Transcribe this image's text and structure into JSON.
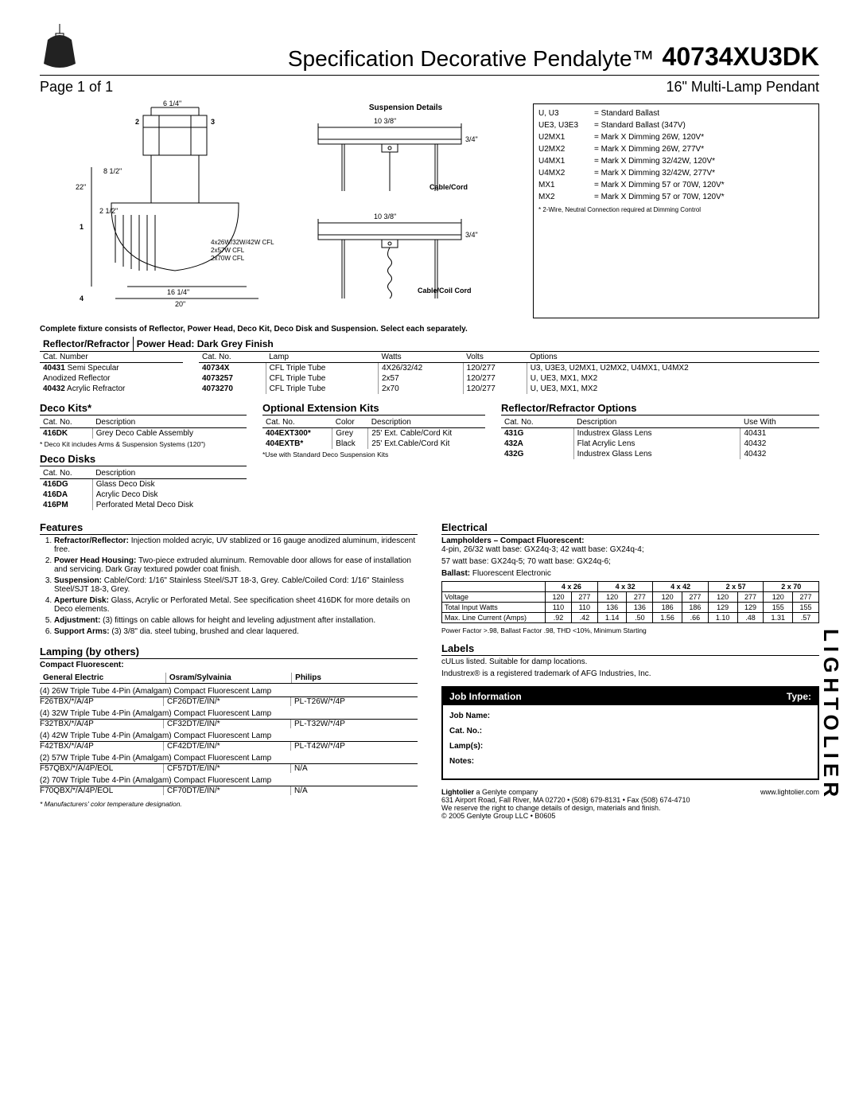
{
  "header": {
    "title": "Specification Decorative Pendalyte™",
    "model": "40734XU3DK",
    "page": "Page 1 of 1",
    "subtitle": "16\" Multi-Lamp Pendant"
  },
  "diagram": {
    "dims": {
      "d1": "6 1/4\"",
      "d2": "8 1/2\"",
      "d3": "22\"",
      "d4": "2 1/2\"",
      "d5": "16 1/4\"",
      "d6": "20\"",
      "cfl1": "4x26W/32W/42W CFL",
      "cfl2": "2x57W CFL",
      "cfl3": "2x70W CFL"
    },
    "markers": [
      "1",
      "2",
      "3",
      "4"
    ]
  },
  "suspension": {
    "title": "Suspension Details",
    "top_dim": "10 3/8\"",
    "side_dim": "3/4\"",
    "label1": "Cable/Cord",
    "label2": "Cable/Coil Cord"
  },
  "ballast": {
    "rows": [
      {
        "code": "U, U3",
        "desc": "= Standard Ballast"
      },
      {
        "code": "UE3, U3E3",
        "desc": "= Standard Ballast (347V)"
      },
      {
        "code": "U2MX1",
        "desc": "= Mark X Dimming 26W, 120V*"
      },
      {
        "code": "U2MX2",
        "desc": "= Mark X Dimming 26W, 277V*"
      },
      {
        "code": "U4MX1",
        "desc": "= Mark X Dimming 32/42W, 120V*"
      },
      {
        "code": "U4MX2",
        "desc": "= Mark X Dimming 32/42W, 277V*"
      },
      {
        "code": "MX1",
        "desc": "= Mark X Dimming 57 or 70W, 120V*"
      },
      {
        "code": "MX2",
        "desc": "= Mark X Dimming 57 or 70W, 120V*"
      }
    ],
    "note": "* 2-Wire, Neutral Connection required at Dimming Control"
  },
  "complete_note": "Complete fixture consists of Reflector, Power Head, Deco Kit, Deco Disk and Suspension. Select each separately.",
  "rr_title": "Reflector/Refractor",
  "ph_title": "Power Head: Dark Grey Finish",
  "refl_table": {
    "headers": [
      "Cat. Number"
    ],
    "rows": [
      {
        "cat": "40431",
        "desc": "Semi Specular Anodized Reflector"
      },
      {
        "cat": "40432",
        "desc": "Acrylic Refractor"
      }
    ],
    "raw_rows": [
      [
        "40431 Semi Specular"
      ],
      [
        "Anodized Reflector"
      ],
      [
        "40432 Acrylic Refractor"
      ]
    ]
  },
  "power_table": {
    "headers": [
      "Cat. No.",
      "Lamp",
      "Watts",
      "Volts",
      "Options"
    ],
    "rows": [
      [
        "40734X",
        "CFL Triple Tube",
        "4X26/32/42",
        "120/277",
        "U3, U3E3, U2MX1, U2MX2, U4MX1, U4MX2"
      ],
      [
        "4073257",
        "CFL Triple Tube",
        "2x57",
        "120/277",
        "U, UE3, MX1, MX2"
      ],
      [
        "4073270",
        "CFL Triple Tube",
        "2x70",
        "120/277",
        "U, UE3, MX1, MX2"
      ]
    ]
  },
  "deco_kits": {
    "title": "Deco Kits*",
    "headers": [
      "Cat. No.",
      "Description"
    ],
    "rows": [
      [
        "416DK",
        "Grey Deco Cable Assembly"
      ]
    ],
    "note": "* Deco Kit includes Arms & Suspension Systems (120\")"
  },
  "deco_disks": {
    "title": "Deco Disks",
    "headers": [
      "Cat. No.",
      "Description"
    ],
    "rows": [
      [
        "416DG",
        "Glass Deco Disk"
      ],
      [
        "416DA",
        "Acrylic Deco Disk"
      ],
      [
        "416PM",
        "Perforated Metal Deco Disk"
      ]
    ]
  },
  "ext_kits": {
    "title": "Optional Extension Kits",
    "headers": [
      "Cat. No.",
      "Color",
      "Description"
    ],
    "rows": [
      [
        "404EXT300*",
        "Grey",
        "25' Ext. Cable/Cord Kit"
      ],
      [
        "404EXTB*",
        "Black",
        "25' Ext.Cable/Cord Kit"
      ]
    ],
    "note": "*Use with Standard Deco Suspension Kits"
  },
  "rr_options": {
    "title": "Reflector/Refractor Options",
    "headers": [
      "Cat. No.",
      "Description",
      "Use With"
    ],
    "rows": [
      [
        "431G",
        "Industrex Glass Lens",
        "40431"
      ],
      [
        "432A",
        "Flat Acrylic Lens",
        "40432"
      ],
      [
        "432G",
        "Industrex Glass Lens",
        "40432"
      ]
    ]
  },
  "features": {
    "title": "Features",
    "items": [
      {
        "label": "Refractor/Reflector:",
        "text": " Injection molded acryic, UV stablized or 16 gauge anodized aluminum, iridescent free."
      },
      {
        "label": "Power Head Housing:",
        "text": " Two-piece extruded aluminum. Removable door allows for ease of installation and servicing. Dark Gray textured powder coat finish."
      },
      {
        "label": "Suspension:",
        "text": " Cable/Cord: 1/16\" Stainless Steel/SJT 18-3, Grey. Cable/Coiled Cord: 1/16\" Stainless Steel/SJT 18-3, Grey."
      },
      {
        "label": "Aperture Disk:",
        "text": " Glass, Acrylic or Perforated Metal. See specification sheet 416DK for more details on Deco elements."
      },
      {
        "label": "Adjustment:",
        "text": " (3) fittings on cable allows for height and leveling adjustment after installation."
      },
      {
        "label": "Support Arms:",
        "text": " (3) 3/8\" dia. steel tubing, brushed and clear laquered."
      }
    ]
  },
  "lamping": {
    "title": "Lamping (by others)",
    "sub": "Compact Fluorescent:",
    "brands": [
      "General Electric",
      "Osram/Sylvainia",
      "Philips"
    ],
    "groups": [
      {
        "title": "(4) 26W Triple Tube 4-Pin (Amalgam) Compact Fluorescent Lamp",
        "row": [
          "F26TBX/*/A/4P",
          "CF26DT/E/IN/*",
          "PL-T26W/*/4P"
        ]
      },
      {
        "title": "(4) 32W Triple Tube 4-Pin (Amalgam) Compact Fluorescent Lamp",
        "row": [
          "F32TBX/*/A/4P",
          "CF32DT/E/IN/*",
          "PL-T32W/*/4P"
        ]
      },
      {
        "title": "(4) 42W Triple Tube 4-Pin (Amalgam) Compact Fluorescent Lamp",
        "row": [
          "F42TBX/*/A/4P",
          "CF42DT/E/IN/*",
          "PL-T42W/*/4P"
        ]
      },
      {
        "title": "(2) 57W Triple Tube 4-Pin (Amalgam) Compact Fluorescent Lamp",
        "row": [
          "F57QBX/*/A/4P/EOL",
          "CF57DT/E/IN/*",
          "N/A"
        ]
      },
      {
        "title": "(2) 70W Triple Tube 4-Pin (Amalgam) Compact Fluorescent Lamp",
        "row": [
          "F70QBX/*/A/4P/EOL",
          "CF70DT/E/IN/*",
          "N/A"
        ]
      }
    ],
    "note": "* Manufacturers' color temperature designation."
  },
  "electrical": {
    "title": "Electrical",
    "lampholders_title": "Lampholders – Compact Fluorescent:",
    "lampholders_lines": [
      "4-pin,  26/32 watt base: GX24q-3;      42 watt base: GX24q-4;",
      "           57 watt base: GX24q-5;      70 watt base: GX24q-6;"
    ],
    "ballast_label": "Ballast:",
    "ballast_text": " Fluorescent Electronic",
    "table": {
      "col_heads": [
        "",
        "4 x 26",
        "4 x 32",
        "4 x 42",
        "2 x 57",
        "2 x 70"
      ],
      "sub_heads": [
        "120",
        "277",
        "120",
        "277",
        "120",
        "277",
        "120",
        "277",
        "120",
        "277"
      ],
      "rows": [
        {
          "label": "Voltage",
          "vals": [
            "120",
            "277",
            "120",
            "277",
            "120",
            "277",
            "120",
            "277",
            "120",
            "277"
          ]
        },
        {
          "label": "Total Input Watts",
          "vals": [
            "110",
            "110",
            "136",
            "136",
            "186",
            "186",
            "129",
            "129",
            "155",
            "155"
          ]
        },
        {
          "label": "Max. Line Current (Amps)",
          "vals": [
            ".92",
            ".42",
            "1.14",
            ".50",
            "1.56",
            ".66",
            "1.10",
            ".48",
            "1.31",
            ".57"
          ]
        }
      ]
    },
    "power_note": "Power Factor >.98, Ballast Factor .98, THD <10%, Minimum Starting"
  },
  "labels": {
    "title": "Labels",
    "line1": "cULus listed. Suitable for damp locations.",
    "line2": "Industrex® is a registered trademark of AFG Industries, Inc."
  },
  "job": {
    "head1": "Job Information",
    "head2": "Type:",
    "fields": [
      "Job Name:",
      "Cat. No.:",
      "Lamp(s):",
      "Notes:"
    ]
  },
  "footer": {
    "brand": "Lightolier",
    "brand_sub": " a Genlyte company",
    "url": "www.lightolier.com",
    "addr": "631 Airport Road, Fall River, MA 02720 • (508) 679-8131 • Fax (508) 674-4710",
    "note1": "We reserve the right to change details of design, materials and finish.",
    "note2": "© 2005 Genlyte Group LLC • B0605"
  },
  "side_brand": "LIGHTOLIER"
}
